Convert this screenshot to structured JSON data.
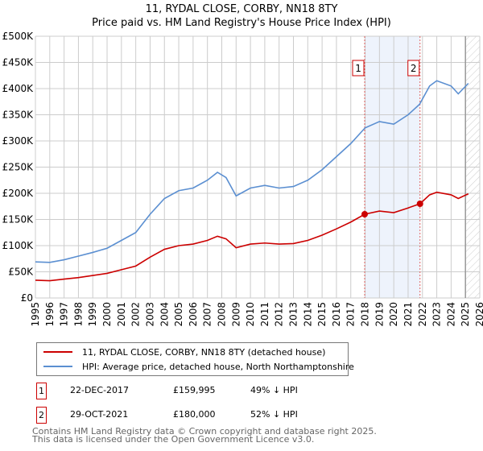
{
  "chart_data": {
    "type": "line",
    "title": "11, RYDAL CLOSE, CORBY, NN18 8TY",
    "subtitle": "Price paid vs. HM Land Registry's House Price Index (HPI)",
    "xlim": [
      1995,
      2026
    ],
    "ylim": [
      0,
      500000
    ],
    "x_ticks": [
      "1995",
      "1996",
      "1997",
      "1998",
      "1999",
      "2000",
      "2001",
      "2002",
      "2003",
      "2004",
      "2005",
      "2006",
      "2007",
      "2008",
      "2009",
      "2010",
      "2011",
      "2012",
      "2013",
      "2014",
      "2015",
      "2016",
      "2017",
      "2018",
      "2019",
      "2020",
      "2021",
      "2022",
      "2023",
      "2024",
      "2025",
      "2026"
    ],
    "y_ticks": [
      {
        "v": 0,
        "label": "£0"
      },
      {
        "v": 50000,
        "label": "£50K"
      },
      {
        "v": 100000,
        "label": "£100K"
      },
      {
        "v": 150000,
        "label": "£150K"
      },
      {
        "v": 200000,
        "label": "£200K"
      },
      {
        "v": 250000,
        "label": "£250K"
      },
      {
        "v": 300000,
        "label": "£300K"
      },
      {
        "v": 350000,
        "label": "£350K"
      },
      {
        "v": 400000,
        "label": "£400K"
      },
      {
        "v": 450000,
        "label": "£450K"
      },
      {
        "v": 500000,
        "label": "£500K"
      }
    ],
    "grid": true,
    "series": [
      {
        "name": "11, RYDAL CLOSE, CORBY, NN18 8TY (detached house)",
        "color": "#cc0000",
        "x": [
          1995,
          1996,
          1997,
          1998,
          1999,
          2000,
          2001,
          2002,
          2003,
          2004,
          2005,
          2006,
          2007,
          2007.7,
          2008.3,
          2009,
          2010,
          2011,
          2012,
          2013,
          2014,
          2015,
          2016,
          2017,
          2017.97,
          2019,
          2020,
          2021,
          2021.83,
          2022.5,
          2023,
          2024,
          2024.5,
          2025.2
        ],
        "y": [
          34000,
          33000,
          36000,
          39000,
          43000,
          47000,
          54000,
          61000,
          78000,
          93000,
          100000,
          103000,
          110000,
          118000,
          113000,
          96000,
          103000,
          105000,
          103000,
          104000,
          110000,
          120000,
          132000,
          145000,
          159995,
          166000,
          163000,
          172000,
          180000,
          197000,
          202000,
          197000,
          190000,
          199000
        ]
      },
      {
        "name": "HPI: Average price, detached house, North Northamptonshire",
        "color": "#5b8fd1",
        "x": [
          1995,
          1996,
          1997,
          1998,
          1999,
          2000,
          2001,
          2002,
          2003,
          2004,
          2005,
          2006,
          2007,
          2007.7,
          2008.3,
          2009,
          2010,
          2011,
          2012,
          2013,
          2014,
          2015,
          2016,
          2017,
          2018,
          2019,
          2020,
          2021,
          2021.8,
          2022.5,
          2023,
          2024,
          2024.5,
          2025.2
        ],
        "y": [
          69000,
          68000,
          73000,
          80000,
          87000,
          95000,
          110000,
          125000,
          160000,
          190000,
          205000,
          210000,
          225000,
          240000,
          230000,
          195000,
          210000,
          215000,
          210000,
          213000,
          225000,
          245000,
          270000,
          295000,
          325000,
          337000,
          332000,
          350000,
          370000,
          405000,
          415000,
          405000,
          390000,
          410000
        ]
      }
    ],
    "sales": [
      {
        "label": "1",
        "x": 2017.97,
        "date": "22-DEC-2017",
        "price": 159995,
        "price_label": "£159,995",
        "hpi_diff": "49% ↓ HPI"
      },
      {
        "label": "2",
        "x": 2021.83,
        "date": "29-OCT-2021",
        "price": 180000,
        "price_label": "£180,000",
        "hpi_diff": "52% ↓ HPI"
      }
    ],
    "forecast_from": 2025.0
  },
  "footer": {
    "line1": "Contains HM Land Registry data © Crown copyright and database right 2025.",
    "line2": "This data is licensed under the Open Government Licence v3.0."
  }
}
